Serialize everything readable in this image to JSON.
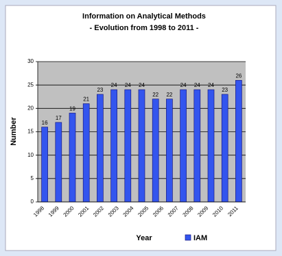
{
  "chart_data": {
    "type": "bar",
    "title": "Information on Analytical Methods",
    "subtitle": "- Evolution  from 1998 to 2011 -",
    "x_label": "Year",
    "y_label": "Number",
    "categories": [
      "1998",
      "1999",
      "2000",
      "2001",
      "2002",
      "2003",
      "2004",
      "2005",
      "2006",
      "2007",
      "2008",
      "2009",
      "2010",
      "2011",
      null
    ],
    "series": [
      {
        "name": "IAM",
        "color": "#3355ee",
        "values": [
          16,
          17,
          19,
          21,
          23,
          24,
          24,
          24,
          22,
          22,
          24,
          24,
          24,
          23,
          26
        ]
      }
    ],
    "ylim": [
      0,
      30
    ],
    "yticks": [
      0,
      5,
      10,
      15,
      20,
      25,
      30
    ],
    "grid": true
  }
}
